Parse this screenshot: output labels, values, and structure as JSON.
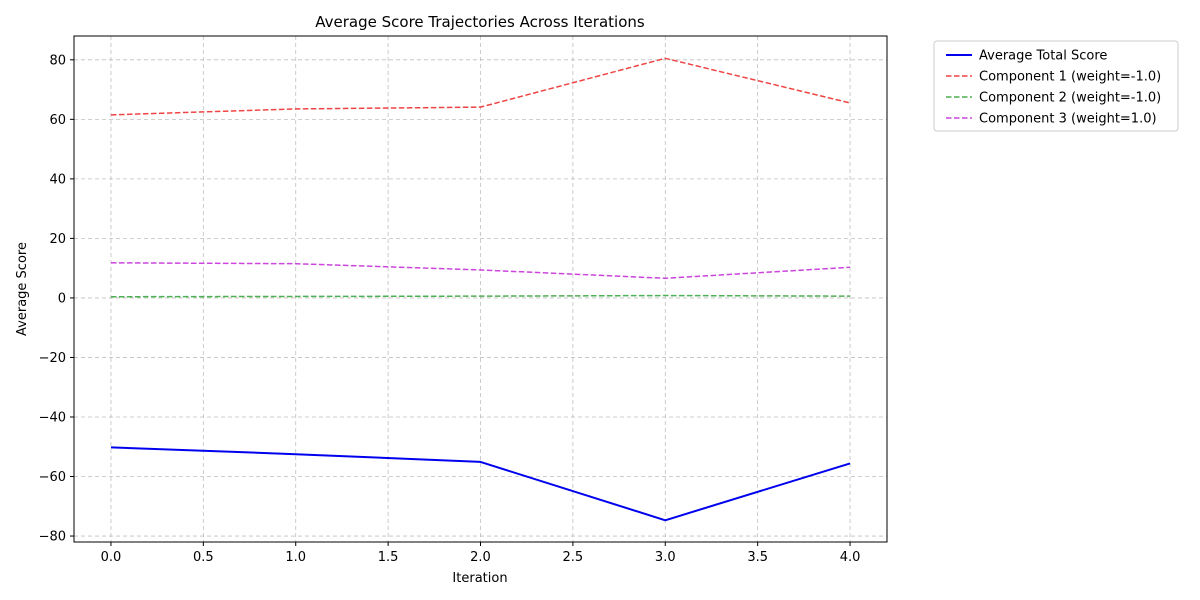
{
  "chart_data": {
    "type": "line",
    "title": "Average Score Trajectories Across Iterations",
    "xlabel": "Iteration",
    "ylabel": "Average Score",
    "x": [
      0,
      1,
      2,
      3,
      4
    ],
    "xlim": [
      -0.2,
      4.2
    ],
    "ylim": [
      -82,
      88
    ],
    "xticks": [
      0.0,
      0.5,
      1.0,
      1.5,
      2.0,
      2.5,
      3.0,
      3.5,
      4.0
    ],
    "xtick_labels": [
      "0.0",
      "0.5",
      "1.0",
      "1.5",
      "2.0",
      "2.5",
      "3.0",
      "3.5",
      "4.0"
    ],
    "yticks": [
      -80,
      -60,
      -40,
      -20,
      0,
      20,
      40,
      60,
      80
    ],
    "ytick_labels": [
      "−80",
      "−60",
      "−40",
      "−20",
      "0",
      "20",
      "40",
      "60",
      "80"
    ],
    "grid": true,
    "legend_position": "outside-top-right",
    "series": [
      {
        "name": "Average Total Score",
        "values": [
          -50.2,
          -52.5,
          -55.1,
          -74.7,
          -55.6
        ],
        "color": "#0000ee",
        "style": "solid"
      },
      {
        "name": "Component 1 (weight=-1.0)",
        "values": [
          61.5,
          63.5,
          64.1,
          80.5,
          65.5
        ],
        "color": "#ef4444",
        "style": "dashed"
      },
      {
        "name": "Component 2 (weight=-1.0)",
        "values": [
          0.4,
          0.5,
          0.6,
          0.8,
          0.6
        ],
        "color": "#4caf50",
        "style": "dashed"
      },
      {
        "name": "Component 3 (weight=1.0)",
        "values": [
          11.8,
          11.5,
          9.4,
          6.6,
          10.3
        ],
        "color": "#cc44dd",
        "style": "dashed"
      }
    ]
  }
}
